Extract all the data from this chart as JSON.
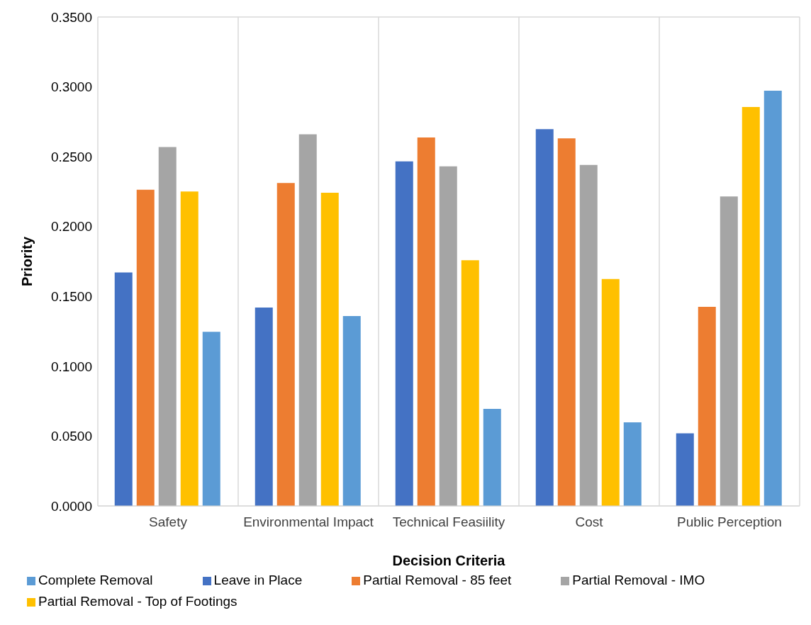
{
  "chart_data": {
    "type": "bar",
    "xlabel": "Decision Criteria",
    "ylabel": "Priority",
    "categories": [
      "Safety",
      "Environmental Impact",
      "Technical Feasiility",
      "Cost",
      "Public Perception"
    ],
    "series": [
      {
        "name": "Leave in Place",
        "color": "#4472c4",
        "values": [
          0.1672,
          0.142,
          0.2467,
          0.2697,
          0.052
        ]
      },
      {
        "name": "Partial Removal - 85 feet",
        "color": "#ed7d31",
        "values": [
          0.2263,
          0.2312,
          0.2638,
          0.2631,
          0.1425
        ]
      },
      {
        "name": "Partial Removal - IMO",
        "color": "#a5a5a5",
        "values": [
          0.2569,
          0.2661,
          0.2431,
          0.2441,
          0.2216
        ]
      },
      {
        "name": "Partial Removal - Top of Footings",
        "color": "#ffc000",
        "values": [
          0.2251,
          0.2242,
          0.1759,
          0.1624,
          0.2856
        ]
      },
      {
        "name": "Complete Removal",
        "color": "#5b9bd5",
        "values": [
          0.1246,
          0.136,
          0.0695,
          0.0598,
          0.2973
        ]
      }
    ],
    "ylim": [
      0,
      0.35
    ],
    "yticks": [
      {
        "value": 0,
        "label": "0.0000"
      },
      {
        "value": 0.05,
        "label": "0.0500"
      },
      {
        "value": 0.1,
        "label": "0.1000"
      },
      {
        "value": 0.15,
        "label": "0.1500"
      },
      {
        "value": 0.2,
        "label": "0.2000"
      },
      {
        "value": 0.25,
        "label": "0.2500"
      },
      {
        "value": 0.3,
        "label": "0.3000"
      },
      {
        "value": 0.35,
        "label": "0.3500"
      }
    ],
    "grid": true,
    "legend": "bottom"
  }
}
